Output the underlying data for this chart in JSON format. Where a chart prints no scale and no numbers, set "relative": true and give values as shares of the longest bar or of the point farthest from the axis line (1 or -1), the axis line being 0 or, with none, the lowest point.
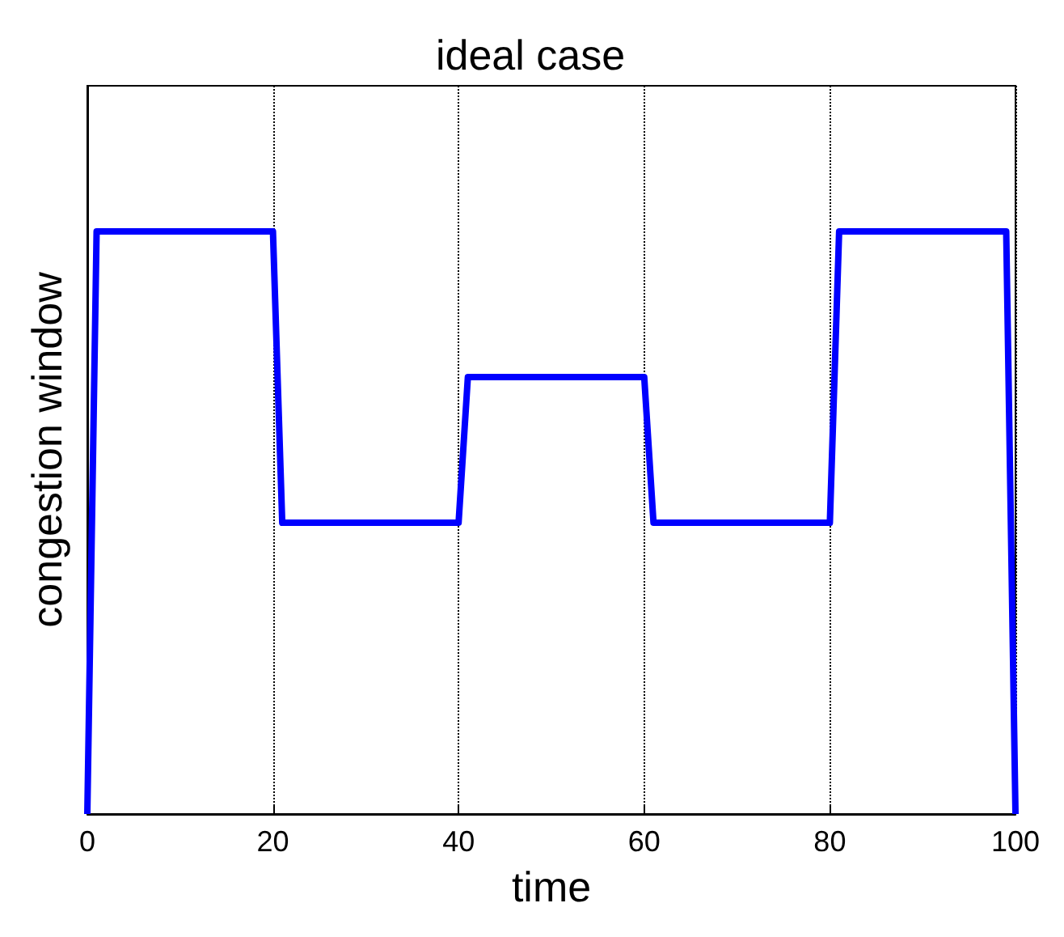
{
  "chart_data": {
    "type": "line",
    "title": "ideal case",
    "xlabel": "time",
    "ylabel": "congestion window",
    "relative": true,
    "x": [
      0,
      1,
      20,
      21,
      40,
      41,
      60,
      61,
      80,
      81,
      99,
      100
    ],
    "series": [
      {
        "color": "#0000ff",
        "values": [
          0,
          1,
          1,
          0.5,
          0.5,
          0.75,
          0.75,
          0.5,
          0.5,
          1,
          1,
          0
        ]
      }
    ],
    "xlim": [
      0,
      100
    ],
    "xticks": [
      0,
      20,
      40,
      60,
      80,
      100
    ],
    "grid": "x",
    "marker": "none",
    "line_style": "solid"
  }
}
